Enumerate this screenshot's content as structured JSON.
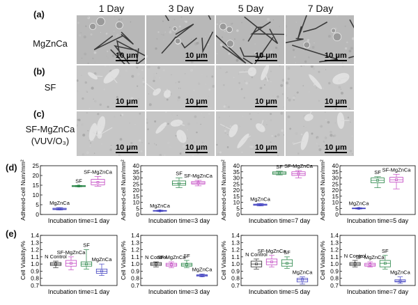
{
  "panels": {
    "a": "(a)",
    "b": "(b)",
    "c": "(c)",
    "d": "(d)",
    "e": "(e)"
  },
  "days": [
    "1 Day",
    "3 Day",
    "5 Day",
    "7 Day"
  ],
  "rows": {
    "a": "MgZnCa",
    "b": "SF",
    "c1": "SF-MgZnCa",
    "c2": "(VUV/O₃)"
  },
  "scalebar": "10 μm",
  "colors": {
    "mgznca": "#4040c0",
    "sf": "#208040",
    "sfmgznca": "#c040c0",
    "control": "#222222",
    "sem_a": "#b8b8b8",
    "sem_bc": "#c6c6c6"
  },
  "chart_data": [
    {
      "type": "box",
      "panel": "d",
      "xlabel": "Incubation time=1 day",
      "ylabel": "Adhered-cell Num/mm²",
      "ylim": [
        0,
        25
      ],
      "yticks": [
        0,
        5,
        10,
        15,
        20,
        25
      ],
      "series": [
        {
          "name": "MgZnCa",
          "median": 2.8,
          "q1": 2.5,
          "q3": 3.2,
          "min": 2.3,
          "max": 3.5
        },
        {
          "name": "SF",
          "median": 14.6,
          "q1": 14.3,
          "q3": 14.8,
          "min": 14.2,
          "max": 14.9
        },
        {
          "name": "SF-MgZnCa",
          "median": 16.5,
          "q1": 15.2,
          "q3": 18.0,
          "min": 14.5,
          "max": 19.5
        }
      ]
    },
    {
      "type": "box",
      "panel": "d",
      "xlabel": "Incubation time=3 day",
      "ylabel": "Adhered-cell Num/mm²",
      "ylim": [
        0,
        40
      ],
      "yticks": [
        0,
        5,
        10,
        15,
        20,
        25,
        30,
        35,
        40
      ],
      "series": [
        {
          "name": "MgZnCa",
          "median": 3.0,
          "q1": 2.7,
          "q3": 3.3,
          "min": 2.5,
          "max": 3.5
        },
        {
          "name": "SF",
          "median": 25.5,
          "q1": 24.0,
          "q3": 27.5,
          "min": 22.0,
          "max": 30.0
        },
        {
          "name": "SF-MgZnCa",
          "median": 25.8,
          "q1": 25.0,
          "q3": 27.0,
          "min": 23.5,
          "max": 28.0
        }
      ]
    },
    {
      "type": "box",
      "panel": "d",
      "xlabel": "Incubation time=7 day",
      "ylabel": "Adhered-cell Num/mm²",
      "ylim": [
        0,
        40
      ],
      "yticks": [
        0,
        5,
        10,
        15,
        20,
        25,
        30,
        35,
        40
      ],
      "series": [
        {
          "name": "MgZnCa",
          "median": 8.0,
          "q1": 7.5,
          "q3": 8.5,
          "min": 7.0,
          "max": 9.0
        },
        {
          "name": "SF",
          "median": 34.0,
          "q1": 33.0,
          "q3": 35.0,
          "min": 32.5,
          "max": 35.5
        },
        {
          "name": "SF-MgZnCa",
          "median": 33.5,
          "q1": 32.0,
          "q3": 35.0,
          "min": 30.0,
          "max": 36.0
        }
      ]
    },
    {
      "type": "box",
      "panel": "d",
      "xlabel": "Incubation time=5 day",
      "ylabel": "Adhered-cell Num/mm²",
      "ylim": [
        0,
        40
      ],
      "yticks": [
        0,
        5,
        10,
        15,
        20,
        25,
        30,
        35,
        40
      ],
      "series": [
        {
          "name": "MgZnCa",
          "median": 5.0,
          "q1": 4.7,
          "q3": 5.3,
          "min": 4.5,
          "max": 5.5
        },
        {
          "name": "SF",
          "median": 28.0,
          "q1": 26.0,
          "q3": 30.0,
          "min": 22.0,
          "max": 31.0
        },
        {
          "name": "SF-MgZnCa",
          "median": 28.5,
          "q1": 26.5,
          "q3": 30.5,
          "min": 21.0,
          "max": 33.0
        }
      ]
    },
    {
      "type": "box",
      "panel": "e",
      "xlabel": "Incubation time=1 day",
      "ylabel": "Cell Viability/%",
      "ylim": [
        0.7,
        1.4
      ],
      "yticks": [
        0.7,
        0.8,
        0.9,
        1.0,
        1.1,
        1.2,
        1.3,
        1.4
      ],
      "series": [
        {
          "name": "N Control",
          "median": 1.0,
          "q1": 0.98,
          "q3": 1.02,
          "min": 0.95,
          "max": 1.04
        },
        {
          "name": "SF-MgZnCa",
          "median": 1.01,
          "q1": 0.97,
          "q3": 1.05,
          "min": 0.92,
          "max": 1.1
        },
        {
          "name": "SF",
          "median": 1.0,
          "q1": 0.97,
          "q3": 1.03,
          "min": 0.93,
          "max": 1.2
        },
        {
          "name": "MgZnCa",
          "median": 0.9,
          "q1": 0.87,
          "q3": 0.93,
          "min": 0.84,
          "max": 1.0
        }
      ]
    },
    {
      "type": "box",
      "panel": "e",
      "xlabel": "Incubation time=3 day",
      "ylabel": "Cell Viability/%",
      "ylim": [
        0.7,
        1.4
      ],
      "yticks": [
        0.7,
        0.8,
        0.9,
        1.0,
        1.1,
        1.2,
        1.3,
        1.4
      ],
      "series": [
        {
          "name": "N Control",
          "median": 1.0,
          "q1": 0.98,
          "q3": 1.02,
          "min": 0.96,
          "max": 1.03
        },
        {
          "name": "SF-MgZnCa",
          "median": 0.99,
          "q1": 0.97,
          "q3": 1.01,
          "min": 0.95,
          "max": 1.03
        },
        {
          "name": "SF",
          "median": 0.99,
          "q1": 0.97,
          "q3": 1.01,
          "min": 0.95,
          "max": 1.05
        },
        {
          "name": "MgZnCa",
          "median": 0.84,
          "q1": 0.83,
          "q3": 0.85,
          "min": 0.82,
          "max": 0.86
        }
      ]
    },
    {
      "type": "box",
      "panel": "e",
      "xlabel": "Incubation time=5 day",
      "ylabel": "Cell Viability/%",
      "ylim": [
        0.7,
        1.4
      ],
      "yticks": [
        0.7,
        0.8,
        0.9,
        1.0,
        1.1,
        1.2,
        1.3,
        1.4
      ],
      "series": [
        {
          "name": "N Control",
          "median": 1.0,
          "q1": 0.96,
          "q3": 1.04,
          "min": 0.93,
          "max": 1.07
        },
        {
          "name": "SF-MgZnCa",
          "median": 1.03,
          "q1": 0.99,
          "q3": 1.07,
          "min": 0.96,
          "max": 1.12
        },
        {
          "name": "SF",
          "median": 1.01,
          "q1": 0.97,
          "q3": 1.06,
          "min": 0.94,
          "max": 1.1
        },
        {
          "name": "MgZnCa",
          "median": 0.78,
          "q1": 0.75,
          "q3": 0.8,
          "min": 0.72,
          "max": 0.82
        }
      ]
    },
    {
      "type": "box",
      "panel": "e",
      "xlabel": "Incubation time=7 day",
      "ylabel": "Cell Viability/%",
      "ylim": [
        0.7,
        1.4
      ],
      "yticks": [
        0.7,
        0.8,
        0.9,
        1.0,
        1.1,
        1.2,
        1.3,
        1.4
      ],
      "series": [
        {
          "name": "N Control",
          "median": 1.0,
          "q1": 0.98,
          "q3": 1.02,
          "min": 0.96,
          "max": 1.05
        },
        {
          "name": "SF-MgZnCa",
          "median": 0.99,
          "q1": 0.97,
          "q3": 1.01,
          "min": 0.96,
          "max": 1.03
        },
        {
          "name": "SF",
          "median": 1.01,
          "q1": 0.96,
          "q3": 1.05,
          "min": 0.93,
          "max": 1.12
        },
        {
          "name": "MgZnCa",
          "median": 0.76,
          "q1": 0.75,
          "q3": 0.78,
          "min": 0.73,
          "max": 0.82
        }
      ]
    }
  ]
}
